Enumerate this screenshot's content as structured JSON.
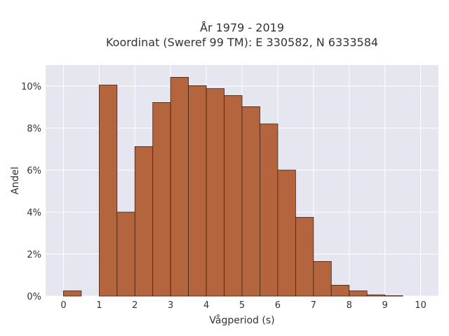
{
  "chart_data": {
    "type": "bar",
    "title_lines": [
      "År 1979 - 2019",
      "Koordinat (Sweref 99 TM): E 330582, N 6333584"
    ],
    "xlabel": "Vågperiod (s)",
    "ylabel": "Andel",
    "bin_width": 0.5,
    "bins": [
      {
        "start": 0.0,
        "value": 0.25
      },
      {
        "start": 0.5,
        "value": 0.0
      },
      {
        "start": 1.0,
        "value": 10.05
      },
      {
        "start": 1.5,
        "value": 4.0
      },
      {
        "start": 2.0,
        "value": 7.12
      },
      {
        "start": 2.5,
        "value": 9.22
      },
      {
        "start": 3.0,
        "value": 10.42
      },
      {
        "start": 3.5,
        "value": 10.02
      },
      {
        "start": 4.0,
        "value": 9.88
      },
      {
        "start": 4.5,
        "value": 9.55
      },
      {
        "start": 5.0,
        "value": 9.02
      },
      {
        "start": 5.5,
        "value": 8.2
      },
      {
        "start": 6.0,
        "value": 6.0
      },
      {
        "start": 6.5,
        "value": 3.75
      },
      {
        "start": 7.0,
        "value": 1.65
      },
      {
        "start": 7.5,
        "value": 0.52
      },
      {
        "start": 8.0,
        "value": 0.25
      },
      {
        "start": 8.5,
        "value": 0.06
      },
      {
        "start": 9.0,
        "value": 0.02
      }
    ],
    "xlim": [
      -0.5,
      10.5
    ],
    "ylim": [
      0,
      11
    ],
    "x_ticks": [
      "0",
      "1",
      "2",
      "3",
      "4",
      "5",
      "6",
      "7",
      "8",
      "9",
      "10"
    ],
    "y_ticks": [
      "0%",
      "2%",
      "4%",
      "6%",
      "8%",
      "10%"
    ],
    "grid": true,
    "colors": {
      "bar_fill": "#b5653d",
      "bar_stroke": "#3d2418",
      "plot_bg": "#e5e6f0",
      "grid": "#ffffff"
    }
  }
}
